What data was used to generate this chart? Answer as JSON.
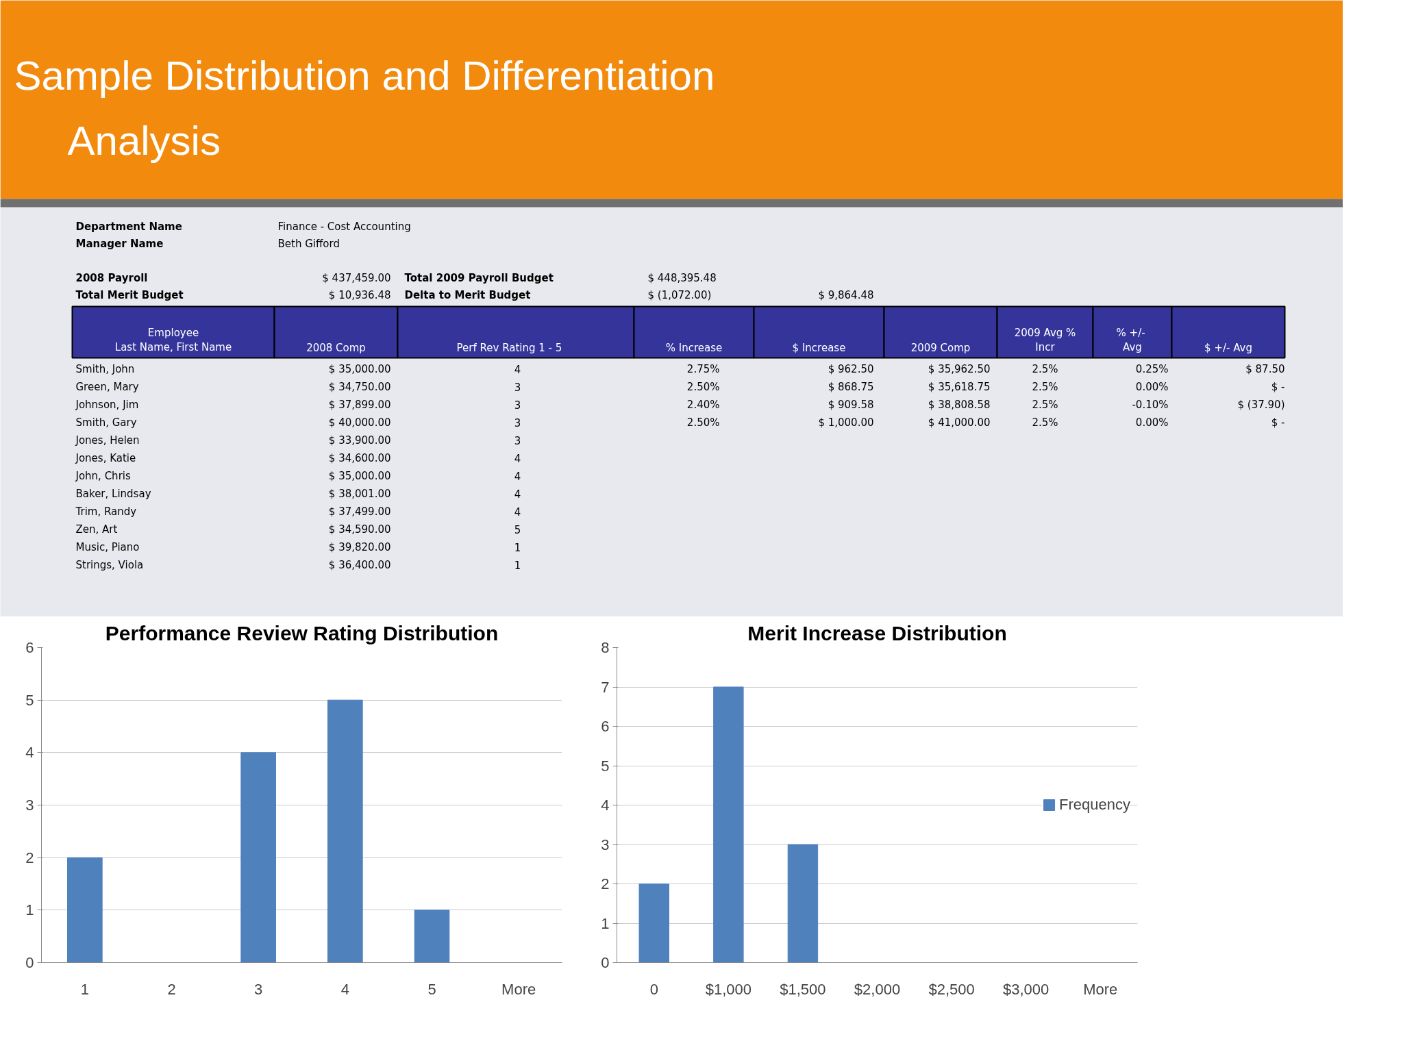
{
  "chart_data": [
    {
      "type": "other",
      "title": "Sample Distribution and Differentiation Analysis",
      "annotations": [
        "Department Name",
        "Finance - Cost Accounting",
        "Manager Name",
        "Beth Gifford",
        "2008 Payroll",
        "$ 437,459.00",
        "Total 2009 Payroll Budget",
        "$ 448,395.48",
        "Total Merit Budget",
        "$ 10,936.48",
        "Delta to Merit Budget",
        "$ (1,072.00)",
        "$ 9,864.48",
        "Employee\nLast Name, First Name",
        "2008 Comp",
        "Perf Rev Rating     1 - 5",
        "% Increase",
        "$ Increase",
        "2009 Comp",
        "2009 Avg %\nIncr",
        "%  +/-\nAvg",
        "$ +/- Avg",
        "Smith, John",
        "$ 35,000.00",
        "4",
        "2.75%",
        "$ 962.50",
        "$ 35,962.50",
        "2.5%",
        "0.25%",
        "$ 87.50",
        "Green, Mary",
        "$ 34,750.00",
        "3",
        "2.50%",
        "$ 868.75",
        "$ 35,618.75",
        "2.5%",
        "0.00%",
        "$ -",
        "Johnson, Jim",
        "$ 37,899.00",
        "3",
        "2.40%",
        "$ 909.58",
        "$ 38,808.58",
        "2.5%",
        "-0.10%",
        "$ (37.90)",
        "Smith, Gary",
        "$ 40,000.00",
        "3",
        "2.50%",
        "$ 1,000.00",
        "$ 41,000.00",
        "2.5%",
        "0.00%",
        "$ -",
        "Jones, Helen",
        "$ 33,900.00",
        "3",
        "Jones, Katie",
        "$ 34,600.00",
        "4",
        "John, Chris",
        "$ 35,000.00",
        "4",
        "Baker, Lindsay",
        "$ 38,001.00",
        "4",
        "Trim, Randy",
        "$ 37,499.00",
        "4",
        "Zen, Art",
        "$ 34,590.00",
        "5",
        "Music, Piano",
        "$ 39,820.00",
        "1",
        "Strings, Viola",
        "$ 36,400.00",
        "1"
      ]
    },
    {
      "type": "bar",
      "title": "Performance Review Rating Distribution",
      "categories": [
        "1",
        "2",
        "3",
        "4",
        "5",
        "More"
      ],
      "values": [
        2,
        0,
        4,
        5,
        1,
        0
      ],
      "color": "#4f81bd",
      "ylim": [
        0,
        6
      ],
      "yticks": [
        0,
        1,
        2,
        3,
        4,
        5,
        6
      ],
      "grid": "y",
      "legend": false
    },
    {
      "type": "bar",
      "title": "Merit Increase Distribution",
      "categories": [
        "0",
        "$1,000",
        "$1,500",
        "$2,000",
        "$2,500",
        "$3,000",
        "More"
      ],
      "series": [
        {
          "name": "Frequency",
          "color": "#4f81bd",
          "values": [
            2,
            7,
            3,
            0,
            0,
            0,
            0
          ]
        }
      ],
      "ylim": [
        0,
        8
      ],
      "yticks": [
        0,
        1,
        2,
        3,
        4,
        5,
        6,
        7,
        8
      ],
      "grid": "y",
      "legend": "right"
    }
  ]
}
